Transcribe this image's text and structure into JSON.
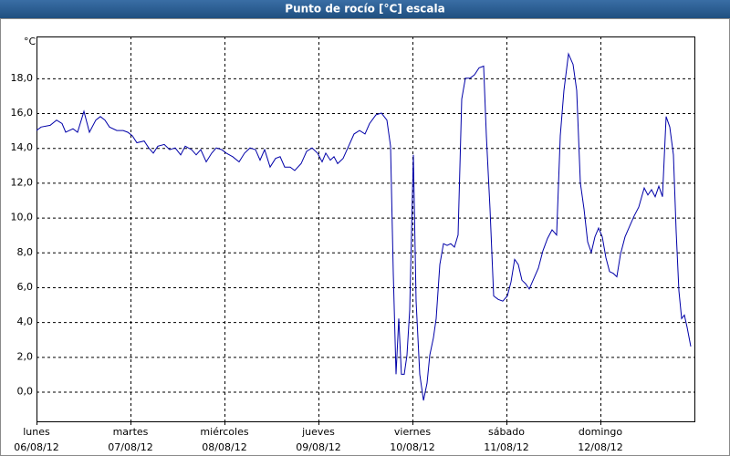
{
  "chart_data": {
    "type": "line",
    "title": "Punto de rocío [°C] escala",
    "y_unit_label": "°C",
    "x": [
      0,
      0.049,
      0.146,
      0.214,
      0.272,
      0.311,
      0.388,
      0.437,
      0.505,
      0.563,
      0.631,
      0.68,
      0.728,
      0.777,
      0.854,
      0.922,
      0.971,
      1.019,
      1.068,
      1.146,
      1.194,
      1.243,
      1.291,
      1.359,
      1.417,
      1.476,
      1.534,
      1.583,
      1.65,
      1.699,
      1.748,
      1.806,
      1.864,
      1.913,
      1.971,
      2.019,
      2.087,
      2.155,
      2.214,
      2.272,
      2.33,
      2.379,
      2.427,
      2.485,
      2.544,
      2.592,
      2.641,
      2.699,
      2.748,
      2.816,
      2.874,
      2.932,
      2.99,
      3.039,
      3.078,
      3.126,
      3.165,
      3.204,
      3.262,
      3.32,
      3.379,
      3.437,
      3.495,
      3.544,
      3.612,
      3.67,
      3.728,
      3.767,
      3.796,
      3.825,
      3.854,
      3.883,
      3.913,
      3.942,
      3.971,
      4.01,
      4.039,
      4.078,
      4.117,
      4.155,
      4.184,
      4.223,
      4.252,
      4.291,
      4.33,
      4.369,
      4.408,
      4.447,
      4.485,
      4.524,
      4.563,
      4.612,
      4.66,
      4.709,
      4.757,
      4.786,
      4.825,
      4.864,
      4.913,
      4.961,
      5.01,
      5.049,
      5.087,
      5.126,
      5.165,
      5.204,
      5.243,
      5.291,
      5.34,
      5.388,
      5.437,
      5.485,
      5.534,
      5.573,
      5.612,
      5.66,
      5.709,
      5.748,
      5.786,
      5.825,
      5.864,
      5.903,
      5.942,
      5.981,
      6.019,
      6.058,
      6.097,
      6.136,
      6.175,
      6.214,
      6.262,
      6.311,
      6.359,
      6.408,
      6.466,
      6.505,
      6.544,
      6.583,
      6.621,
      6.66,
      6.699,
      6.738,
      6.777,
      6.806,
      6.835,
      6.864,
      6.893,
      6.922,
      6.961
    ],
    "series": [
      {
        "color": "#0000a8",
        "values": [
          15.0,
          15.2,
          15.3,
          15.6,
          15.4,
          14.9,
          15.1,
          14.9,
          16.1,
          14.9,
          15.6,
          15.8,
          15.6,
          15.2,
          15.0,
          15.0,
          14.9,
          14.7,
          14.3,
          14.4,
          14.0,
          13.7,
          14.1,
          14.2,
          13.9,
          14.0,
          13.6,
          14.1,
          13.9,
          13.6,
          13.9,
          13.2,
          13.7,
          14.0,
          13.9,
          13.7,
          13.5,
          13.2,
          13.7,
          14.0,
          13.9,
          13.3,
          13.9,
          12.9,
          13.4,
          13.5,
          12.9,
          12.9,
          12.7,
          13.1,
          13.8,
          14.0,
          13.7,
          13.2,
          13.7,
          13.3,
          13.5,
          13.1,
          13.4,
          14.1,
          14.8,
          15.0,
          14.8,
          15.4,
          15.9,
          16.0,
          15.6,
          14.1,
          6.8,
          1.0,
          4.2,
          1.0,
          1.0,
          2.1,
          4.7,
          13.6,
          5.2,
          1.0,
          -0.5,
          0.5,
          2.1,
          3.1,
          4.2,
          7.3,
          8.5,
          8.4,
          8.5,
          8.3,
          9.0,
          16.8,
          18.0,
          18.0,
          18.2,
          18.6,
          18.7,
          14.7,
          10.5,
          5.5,
          5.3,
          5.2,
          5.5,
          6.3,
          7.6,
          7.3,
          6.4,
          6.2,
          5.9,
          6.5,
          7.1,
          8.1,
          8.8,
          9.3,
          9.0,
          14.7,
          17.3,
          19.4,
          18.8,
          17.3,
          12.0,
          10.5,
          8.6,
          8.0,
          8.9,
          9.4,
          8.9,
          7.7,
          6.9,
          6.8,
          6.6,
          7.9,
          8.9,
          9.5,
          10.1,
          10.6,
          11.7,
          11.3,
          11.6,
          11.2,
          11.8,
          11.2,
          15.8,
          15.2,
          13.6,
          9.2,
          5.8,
          4.2,
          4.4,
          3.7,
          2.6
        ]
      }
    ],
    "xlim": [
      0,
      7
    ],
    "ylim": [
      -1.7,
      20.4
    ],
    "xticks": [
      {
        "value": 0,
        "label": "lunes",
        "date": "06/08/12"
      },
      {
        "value": 1,
        "label": "martes",
        "date": "07/08/12"
      },
      {
        "value": 2,
        "label": "miércoles",
        "date": "08/08/12"
      },
      {
        "value": 3,
        "label": "jueves",
        "date": "09/08/12"
      },
      {
        "value": 4,
        "label": "viernes",
        "date": "10/08/12"
      },
      {
        "value": 5,
        "label": "sábado",
        "date": "11/08/12"
      },
      {
        "value": 6,
        "label": "domingo",
        "date": "12/08/12"
      }
    ],
    "yticks": [
      {
        "value": 0,
        "label": "0,0"
      },
      {
        "value": 2,
        "label": "2,0"
      },
      {
        "value": 4,
        "label": "4,0"
      },
      {
        "value": 6,
        "label": "6,0"
      },
      {
        "value": 8,
        "label": "8,0"
      },
      {
        "value": 10,
        "label": "10,0"
      },
      {
        "value": 12,
        "label": "12,0"
      },
      {
        "value": 14,
        "label": "14,0"
      },
      {
        "value": 16,
        "label": "16,0"
      },
      {
        "value": 18,
        "label": "18,0"
      }
    ],
    "grid": true
  }
}
